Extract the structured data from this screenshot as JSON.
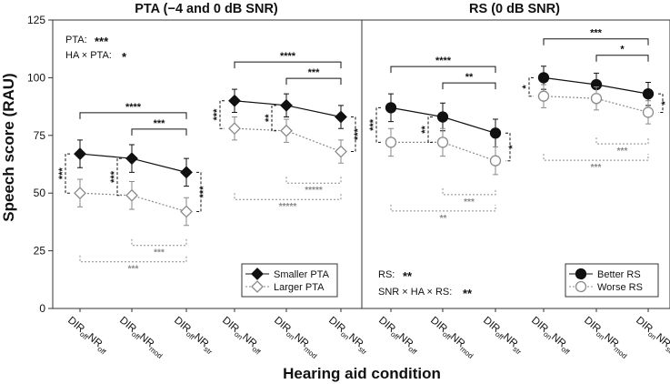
{
  "chart_data": [
    {
      "type": "line",
      "title": "PTA (−4 and 0 dB SNR)",
      "xlabel": "Hearing aid condition",
      "ylabel": "Speech score (RAU)",
      "ylim": [
        0,
        125
      ],
      "yticks": [
        0,
        25,
        50,
        75,
        100,
        125
      ],
      "categories": [
        {
          "main": "DIR",
          "sub1": "off",
          "mid": "NR",
          "sub2": "off"
        },
        {
          "main": "DIR",
          "sub1": "off",
          "mid": "NR",
          "sub2": "mod"
        },
        {
          "main": "DIR",
          "sub1": "off",
          "mid": "NR",
          "sub2": "str"
        },
        {
          "main": "DIR",
          "sub1": "on",
          "mid": "NR",
          "sub2": "off"
        },
        {
          "main": "DIR",
          "sub1": "on",
          "mid": "NR",
          "sub2": "mod"
        },
        {
          "main": "DIR",
          "sub1": "on",
          "mid": "NR",
          "sub2": "str"
        }
      ],
      "series": [
        {
          "name": "Smaller PTA",
          "marker": "filled-diamond",
          "values": [
            67,
            65,
            59,
            90,
            88,
            83
          ],
          "errors": [
            6,
            6,
            6,
            5,
            5,
            5
          ]
        },
        {
          "name": "Larger PTA",
          "marker": "open-diamond",
          "values": [
            50,
            49,
            42,
            78,
            77,
            68
          ],
          "errors": [
            6,
            6,
            6,
            5,
            5,
            5
          ]
        }
      ],
      "legend_position": "bottom-right",
      "annotations": [
        {
          "label": "PTA:",
          "stars": "***"
        },
        {
          "label": "HA × PTA:",
          "stars": "*"
        }
      ]
    },
    {
      "type": "line",
      "title": "RS (0 dB SNR)",
      "xlabel": "Hearing aid condition",
      "ylabel": "Speech score (RAU)",
      "ylim": [
        0,
        125
      ],
      "yticks": [
        0,
        25,
        50,
        75,
        100,
        125
      ],
      "categories": [
        {
          "main": "DIR",
          "sub1": "off",
          "mid": "NR",
          "sub2": "off"
        },
        {
          "main": "DIR",
          "sub1": "off",
          "mid": "NR",
          "sub2": "mod"
        },
        {
          "main": "DIR",
          "sub1": "off",
          "mid": "NR",
          "sub2": "str"
        },
        {
          "main": "DIR",
          "sub1": "on",
          "mid": "NR",
          "sub2": "off"
        },
        {
          "main": "DIR",
          "sub1": "on",
          "mid": "NR",
          "sub2": "mod"
        },
        {
          "main": "DIR",
          "sub1": "on",
          "mid": "NR",
          "sub2": "str"
        }
      ],
      "series": [
        {
          "name": "Better RS",
          "marker": "filled-circle",
          "values": [
            87,
            83,
            76,
            100,
            97,
            93
          ],
          "errors": [
            6,
            6,
            6,
            5,
            5,
            5
          ]
        },
        {
          "name": "Worse RS",
          "marker": "open-circle",
          "values": [
            72,
            72,
            64,
            92,
            91,
            85
          ],
          "errors": [
            6,
            6,
            6,
            5,
            5,
            5
          ]
        }
      ],
      "legend_position": "bottom-right",
      "annotations": [
        {
          "label": "RS:",
          "stars": "**"
        },
        {
          "label": "SNR × HA × RS:",
          "stars": "**"
        }
      ]
    }
  ],
  "significance": [
    {
      "top": [
        {
          "from": 0,
          "to": 2,
          "stars": "****"
        },
        {
          "from": 1,
          "to": 2,
          "stars": "***"
        },
        {
          "from": 3,
          "to": 5,
          "stars": "****"
        },
        {
          "from": 4,
          "to": 5,
          "stars": "***"
        }
      ],
      "bottom": [
        {
          "from": 1,
          "to": 2,
          "stars": "***"
        },
        {
          "from": 0,
          "to": 2,
          "stars": "***"
        },
        {
          "from": 4,
          "to": 5,
          "stars": "*****"
        },
        {
          "from": 3,
          "to": 5,
          "stars": "*****"
        }
      ],
      "vertical": [
        {
          "index": 0,
          "side": "left",
          "stars": "***"
        },
        {
          "index": 1,
          "side": "left",
          "stars": "***"
        },
        {
          "index": 2,
          "side": "right",
          "stars": "***"
        },
        {
          "index": 3,
          "side": "left",
          "stars": "***"
        },
        {
          "index": 4,
          "side": "left",
          "stars": "**"
        },
        {
          "index": 5,
          "side": "right",
          "stars": "***"
        }
      ]
    },
    {
      "top": [
        {
          "from": 0,
          "to": 2,
          "stars": "****"
        },
        {
          "from": 1,
          "to": 2,
          "stars": "**"
        },
        {
          "from": 3,
          "to": 5,
          "stars": "***"
        },
        {
          "from": 4,
          "to": 5,
          "stars": "*"
        }
      ],
      "bottom": [
        {
          "from": 1,
          "to": 2,
          "stars": "***"
        },
        {
          "from": 0,
          "to": 2,
          "stars": "**"
        },
        {
          "from": 4,
          "to": 5,
          "stars": "***"
        },
        {
          "from": 3,
          "to": 5,
          "stars": "***"
        }
      ],
      "vertical": [
        {
          "index": 0,
          "side": "left",
          "stars": "***"
        },
        {
          "index": 1,
          "side": "left",
          "stars": "**"
        },
        {
          "index": 2,
          "side": "right",
          "stars": "*"
        },
        {
          "index": 3,
          "side": "left",
          "stars": "*"
        },
        {
          "index": 5,
          "side": "right",
          "stars": "*"
        }
      ]
    }
  ],
  "colors": {
    "dark": "#111111",
    "grey": "#8a8a8a",
    "frame": "#333333"
  }
}
